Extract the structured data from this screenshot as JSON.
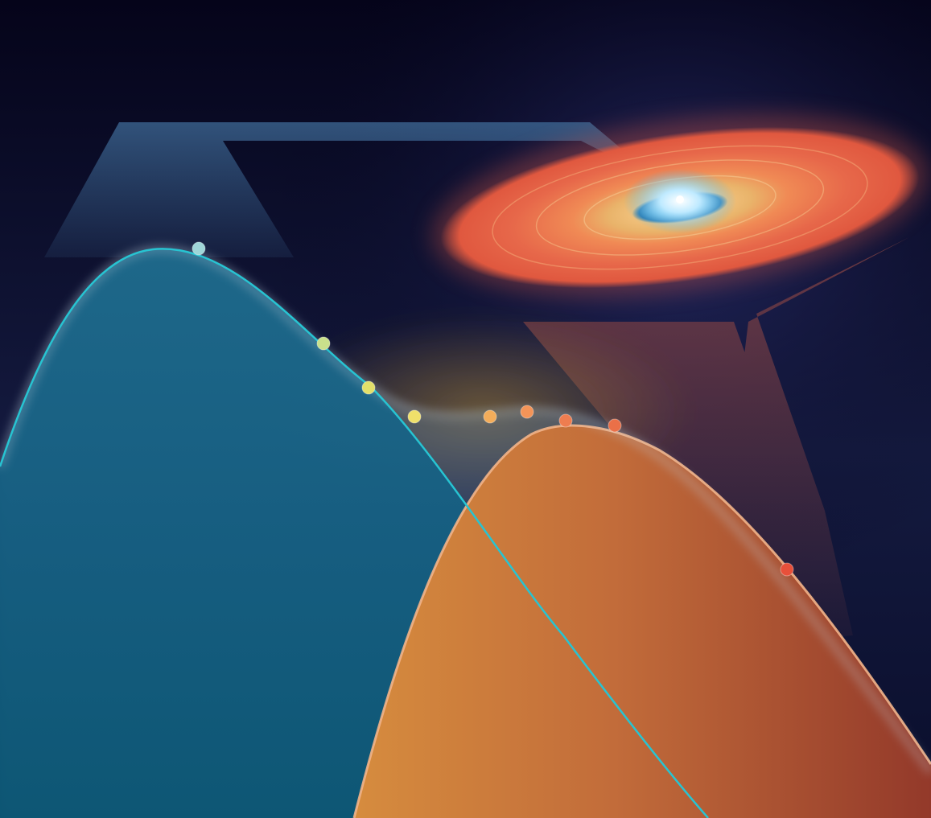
{
  "colors": {
    "background_top": "#05041a",
    "background_mid": "#141a3f",
    "star_core": "#e8fbff",
    "star_glow": "#4fb3e6",
    "disk_outer": "#e0583f",
    "disk_mid": "#f08a55",
    "disk_inner_ring": "#e9b36a",
    "cool_bump": "#0f6f8f",
    "cool_curve_line": "#27c4d2",
    "warm_bump_left": "#d68c3e",
    "warm_bump_right": "#a8412c",
    "warm_curve_line": "#f2b48a",
    "beam_blue": "#3f6b98",
    "beam_red": "#7a3f44"
  },
  "data_point_colors": [
    "#9fd6d8",
    "#c9e08c",
    "#e3e06a",
    "#f0e06a",
    "#f4ad5a",
    "#f39458",
    "#ee7d50",
    "#ea7048",
    "#e8503a"
  ],
  "icons": [
    "star-disk-icon"
  ]
}
